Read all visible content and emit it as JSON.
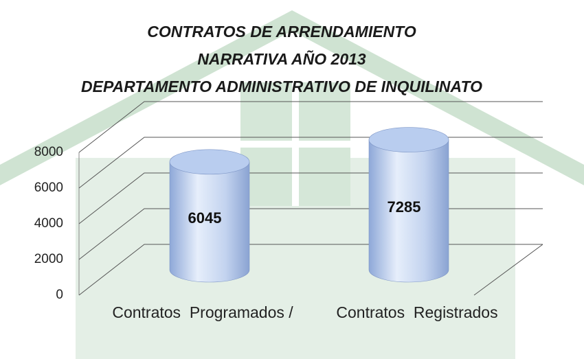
{
  "chart_data": {
    "type": "cylinder",
    "title": [
      "CONTRATOS DE ARRENDAMIENTO",
      "NARRATIVA  AÑO 2013",
      "DEPARTAMENTO ADMINISTRATIVO DE INQUILINATO"
    ],
    "categories": [
      "Contratos  Programados /",
      "Contratos  Registrados"
    ],
    "values": [
      6045,
      7285
    ],
    "color": "#b9cdef",
    "ylim": [
      0,
      8000
    ],
    "yticks": [
      0,
      2000,
      4000,
      6000,
      8000
    ],
    "grid": true
  }
}
